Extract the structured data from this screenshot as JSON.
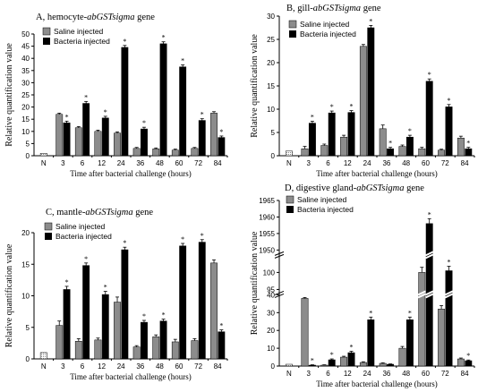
{
  "x_categories": [
    "N",
    "3",
    "6",
    "12",
    "24",
    "36",
    "48",
    "60",
    "72",
    "84"
  ],
  "legend": {
    "saline": "Saline injected",
    "bacteria": "Bacteria injected"
  },
  "colors": {
    "saline": "#8c8c8c",
    "bacteria": "#000000",
    "baseline": "#ffffff"
  },
  "chart_data": [
    {
      "type": "bar",
      "title_prefix": "A, hemocyte-",
      "title_italic": "abGSTsigma",
      "title_suffix": " gene",
      "xlabel": "Time after bacterial challenge (hours)",
      "ylabel": "Relative quantification value",
      "ylim": [
        0,
        50
      ],
      "yticks": [
        0,
        5,
        10,
        15,
        20,
        25,
        30,
        35,
        40,
        45,
        50
      ],
      "legend_position": "top-left",
      "categories": [
        "N",
        "3",
        "6",
        "12",
        "24",
        "36",
        "48",
        "60",
        "72",
        "84"
      ],
      "series": [
        {
          "name": "Saline injected",
          "key": "saline",
          "values": [
            1,
            17,
            11.5,
            10,
            9.3,
            3,
            2.8,
            2.3,
            3,
            17.5
          ],
          "errors": [
            0.3,
            0.5,
            0.5,
            0.5,
            0.5,
            0.4,
            0.4,
            0.4,
            0.4,
            0.6
          ]
        },
        {
          "name": "Bacteria injected",
          "key": "bacteria",
          "values": [
            null,
            13.5,
            21.5,
            15.5,
            44.5,
            11,
            46,
            36.5,
            14.5,
            7.5
          ],
          "errors": [
            0,
            0.7,
            0.8,
            0.7,
            0.8,
            0.7,
            0.8,
            0.8,
            0.7,
            0.6
          ],
          "significant": [
            false,
            true,
            true,
            true,
            true,
            true,
            true,
            true,
            true,
            true
          ]
        }
      ]
    },
    {
      "type": "bar",
      "title_prefix": "B, gill-",
      "title_italic": "abGSTsigma",
      "title_suffix": " gene",
      "xlabel": "Time after bacterial challenge (hours)",
      "ylabel": "Relative quantification value",
      "ylim": [
        0,
        30
      ],
      "yticks": [
        0,
        5,
        10,
        15,
        20,
        25,
        30
      ],
      "legend_position": "top-left",
      "categories": [
        "N",
        "3",
        "6",
        "12",
        "24",
        "36",
        "48",
        "60",
        "72",
        "84"
      ],
      "series": [
        {
          "name": "Saline injected",
          "key": "saline",
          "values": [
            1,
            1.5,
            2.2,
            4,
            23.5,
            5.8,
            2,
            1.5,
            1.2,
            3.8
          ],
          "errors": [
            0.2,
            0.5,
            0.3,
            0.4,
            0.4,
            0.8,
            0.3,
            0.3,
            0.2,
            0.4
          ]
        },
        {
          "name": "Bacteria injected",
          "key": "bacteria",
          "values": [
            null,
            7,
            9.2,
            9.3,
            27.5,
            1.5,
            4,
            16,
            10.5,
            1.5
          ],
          "errors": [
            0,
            0.4,
            0.4,
            0.4,
            0.5,
            0.3,
            0.4,
            0.5,
            0.5,
            0.3
          ],
          "significant": [
            false,
            true,
            true,
            true,
            true,
            true,
            true,
            true,
            true,
            true
          ]
        }
      ]
    },
    {
      "type": "bar",
      "title_prefix": "C, mantle-",
      "title_italic": "abGSTsigma",
      "title_suffix": " gene",
      "xlabel": "Time after bacterial challenge (hours)",
      "ylabel": "Relative quantification value",
      "ylim": [
        0,
        20
      ],
      "yticks": [
        0,
        5,
        10,
        15,
        20
      ],
      "legend_position": "top-left",
      "categories": [
        "N",
        "3",
        "6",
        "12",
        "24",
        "36",
        "48",
        "60",
        "72",
        "84"
      ],
      "series": [
        {
          "name": "Saline injected",
          "key": "saline",
          "values": [
            1,
            5.3,
            2.8,
            3,
            9,
            1.9,
            3.5,
            2.7,
            2.9,
            15.2
          ],
          "errors": [
            0.2,
            0.7,
            0.4,
            0.3,
            0.8,
            0.2,
            0.3,
            0.4,
            0.3,
            0.5
          ]
        },
        {
          "name": "Bacteria injected",
          "key": "bacteria",
          "values": [
            null,
            11,
            14.8,
            10.2,
            17.3,
            5.8,
            6,
            17.9,
            18.5,
            4.3
          ],
          "errors": [
            0,
            0.5,
            0.4,
            0.5,
            0.4,
            0.3,
            0.3,
            0.4,
            0.4,
            0.3
          ],
          "significant": [
            false,
            true,
            true,
            true,
            true,
            true,
            true,
            true,
            true,
            true
          ]
        }
      ]
    },
    {
      "type": "bar",
      "title_prefix": "D, digestive gland-",
      "title_italic": "abGSTsigma",
      "title_suffix": " gene",
      "xlabel": "Time after bacterial challenge (hours)",
      "ylabel": "Relative quantification value",
      "axis_segments": [
        {
          "range": [
            0,
            40
          ],
          "ticks": [
            0,
            10,
            20,
            30,
            40
          ]
        },
        {
          "range": [
            95,
            105
          ],
          "ticks": [
            95,
            100
          ]
        },
        {
          "range": [
            1950,
            1965
          ],
          "ticks": [
            1950,
            1955,
            1960,
            1965
          ]
        }
      ],
      "legend_position": "top-left",
      "categories": [
        "N",
        "3",
        "6",
        "12",
        "24",
        "36",
        "48",
        "60",
        "72",
        "84"
      ],
      "series": [
        {
          "name": "Saline injected",
          "key": "saline",
          "values": [
            1,
            38,
            0.5,
            5,
            2,
            1.5,
            10,
            100,
            32,
            4
          ],
          "errors": [
            0.2,
            3,
            0.2,
            0.5,
            0.4,
            0.3,
            1,
            1.5,
            2,
            0.5
          ]
        },
        {
          "name": "Bacteria injected",
          "key": "bacteria",
          "values": [
            null,
            0.5,
            3.5,
            7.5,
            26,
            1,
            26,
            1958,
            100.5,
            3
          ],
          "errors": [
            0,
            0.2,
            0.5,
            0.8,
            1.5,
            0.2,
            1.5,
            1.5,
            1.3,
            0.4
          ],
          "significant": [
            false,
            true,
            true,
            true,
            true,
            false,
            true,
            true,
            true,
            true
          ]
        }
      ]
    }
  ]
}
